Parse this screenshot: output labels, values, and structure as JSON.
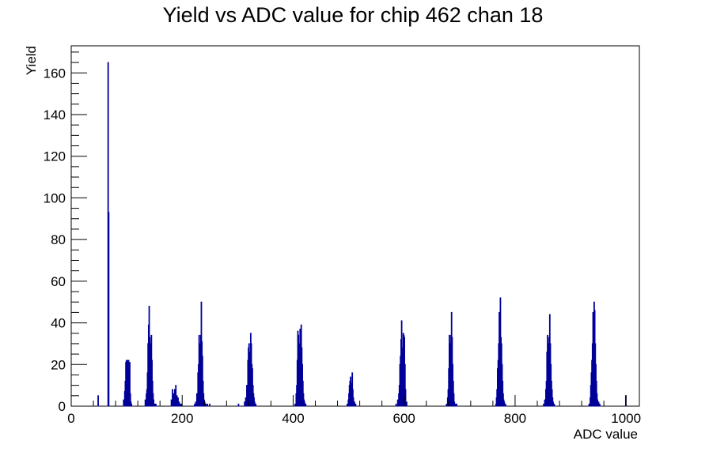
{
  "chart_data": {
    "type": "bar",
    "title": "Yield vs ADC value for chip 462 chan 18",
    "xlabel": "ADC value",
    "ylabel": "Yield",
    "xlim": [
      0,
      1024
    ],
    "ylim": [
      0,
      173
    ],
    "x_ticks": [
      0,
      200,
      400,
      600,
      800,
      1000
    ],
    "y_ticks": [
      0,
      20,
      40,
      60,
      80,
      100,
      120,
      140,
      160
    ],
    "grid": false,
    "legend": "none",
    "series_color": "#000099",
    "series": [
      {
        "x": [
          48,
          66,
          67,
          94,
          96,
          97,
          98,
          99,
          100,
          101,
          102,
          103,
          104,
          105,
          106,
          107,
          108,
          133,
          135,
          136,
          137,
          138,
          139,
          140,
          141,
          142,
          143,
          144,
          145,
          146,
          147,
          148,
          150,
          152,
          180,
          182,
          184,
          186,
          188,
          190,
          192,
          194,
          196,
          198,
          222,
          224,
          226,
          228,
          229,
          230,
          231,
          232,
          233,
          234,
          235,
          236,
          237,
          238,
          239,
          240,
          242,
          245,
          249,
          301,
          312,
          314,
          316,
          318,
          319,
          320,
          321,
          322,
          323,
          324,
          325,
          326,
          327,
          328,
          329,
          330,
          332,
          403,
          405,
          406,
          407,
          408,
          409,
          410,
          411,
          412,
          413,
          414,
          415,
          416,
          417,
          418,
          419,
          420,
          422,
          497,
          499,
          500,
          501,
          502,
          503,
          504,
          505,
          506,
          507,
          508,
          510,
          512,
          585,
          588,
          590,
          591,
          592,
          593,
          594,
          595,
          596,
          597,
          598,
          599,
          600,
          601,
          602,
          604,
          676,
          678,
          679,
          680,
          681,
          682,
          683,
          684,
          685,
          686,
          687,
          688,
          689,
          690,
          692,
          694,
          765,
          766,
          767,
          768,
          769,
          770,
          771,
          772,
          773,
          774,
          775,
          776,
          777,
          778,
          779,
          780,
          782,
          851,
          853,
          855,
          856,
          857,
          858,
          859,
          860,
          861,
          862,
          863,
          864,
          865,
          866,
          867,
          868,
          870,
          933,
          935,
          936,
          937,
          938,
          939,
          940,
          941,
          942,
          943,
          944,
          945,
          946,
          947,
          948,
          950,
          952,
          999
        ],
        "values": [
          5,
          165,
          93,
          3,
          7,
          12,
          21,
          22,
          18,
          22,
          21,
          22,
          16,
          21,
          6,
          2,
          1,
          3,
          6,
          8,
          16,
          30,
          39,
          48,
          33,
          28,
          30,
          34,
          22,
          12,
          6,
          3,
          1,
          1,
          3,
          8,
          6,
          8,
          10,
          5,
          4,
          2,
          1,
          1,
          1,
          2,
          6,
          16,
          20,
          34,
          30,
          28,
          34,
          50,
          31,
          24,
          12,
          6,
          3,
          2,
          1,
          1,
          1,
          1,
          2,
          4,
          10,
          22,
          28,
          30,
          26,
          24,
          35,
          30,
          20,
          18,
          10,
          6,
          4,
          2,
          1,
          1,
          6,
          10,
          22,
          36,
          34,
          30,
          28,
          37,
          32,
          39,
          28,
          20,
          12,
          6,
          3,
          2,
          1,
          1,
          3,
          6,
          10,
          12,
          14,
          11,
          10,
          16,
          8,
          4,
          2,
          1,
          1,
          3,
          6,
          10,
          20,
          24,
          32,
          41,
          28,
          26,
          35,
          34,
          33,
          20,
          8,
          2,
          1,
          4,
          8,
          18,
          34,
          30,
          28,
          34,
          45,
          33,
          20,
          12,
          6,
          2,
          1,
          1,
          1,
          4,
          8,
          18,
          22,
          30,
          45,
          40,
          52,
          33,
          30,
          20,
          12,
          6,
          3,
          2,
          1,
          1,
          3,
          8,
          12,
          26,
          34,
          30,
          28,
          33,
          44,
          30,
          20,
          12,
          8,
          4,
          2,
          1,
          1,
          4,
          10,
          16,
          22,
          30,
          45,
          38,
          50,
          46,
          30,
          20,
          12,
          6,
          3,
          2,
          1,
          5
        ]
      }
    ]
  }
}
